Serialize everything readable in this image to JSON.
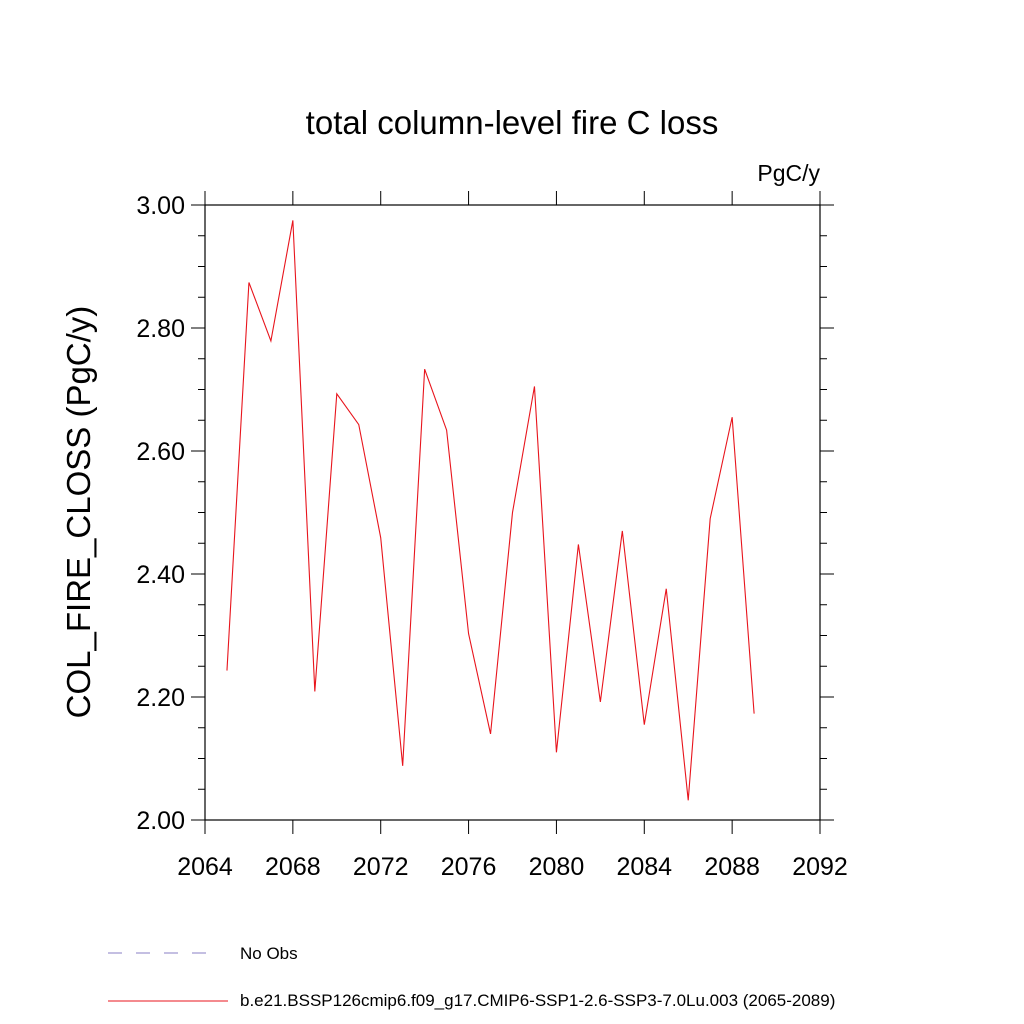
{
  "chart_data": {
    "type": "line",
    "title": "total column-level fire C loss",
    "units": "PgC/y",
    "xlabel": "",
    "ylabel": "COL_FIRE_CLOSS  (PgC/y)",
    "xlim": [
      2064,
      2092
    ],
    "ylim": [
      2.0,
      3.0
    ],
    "x_ticks": [
      2064,
      2068,
      2072,
      2076,
      2080,
      2084,
      2088,
      2092
    ],
    "x_tick_labels": [
      "2064",
      "2068",
      "2072",
      "2076",
      "2080",
      "2084",
      "2088",
      "2092"
    ],
    "y_ticks": [
      2.0,
      2.2,
      2.4,
      2.6,
      2.8,
      3.0
    ],
    "y_tick_labels": [
      "2.00",
      "2.20",
      "2.40",
      "2.60",
      "2.80",
      "3.00"
    ],
    "grid": false,
    "legend_position": "bottom",
    "series": [
      {
        "name": "b.e21.BSSP126cmip6.f09_g17.CMIP6-SSP1-2.6-SSP3-7.0Lu.003 (2065-2089)",
        "color": "#e8141c",
        "style": "solid",
        "x": [
          2065,
          2066,
          2067,
          2068,
          2069,
          2070,
          2071,
          2072,
          2073,
          2074,
          2075,
          2076,
          2077,
          2078,
          2079,
          2080,
          2081,
          2082,
          2083,
          2084,
          2085,
          2086,
          2087,
          2088,
          2089
        ],
        "values": [
          2.243,
          2.874,
          2.779,
          2.975,
          2.209,
          2.693,
          2.643,
          2.459,
          2.088,
          2.733,
          2.634,
          2.303,
          2.14,
          2.5,
          2.705,
          2.11,
          2.448,
          2.192,
          2.47,
          2.155,
          2.376,
          2.032,
          2.49,
          2.655,
          2.173
        ]
      }
    ],
    "legend": [
      {
        "label": "No Obs",
        "color": "#8a7fc4",
        "style": "dashed"
      },
      {
        "label": "b.e21.BSSP126cmip6.f09_g17.CMIP6-SSP1-2.6-SSP3-7.0Lu.003 (2065-2089)",
        "color": "#e8141c",
        "style": "solid"
      }
    ]
  }
}
